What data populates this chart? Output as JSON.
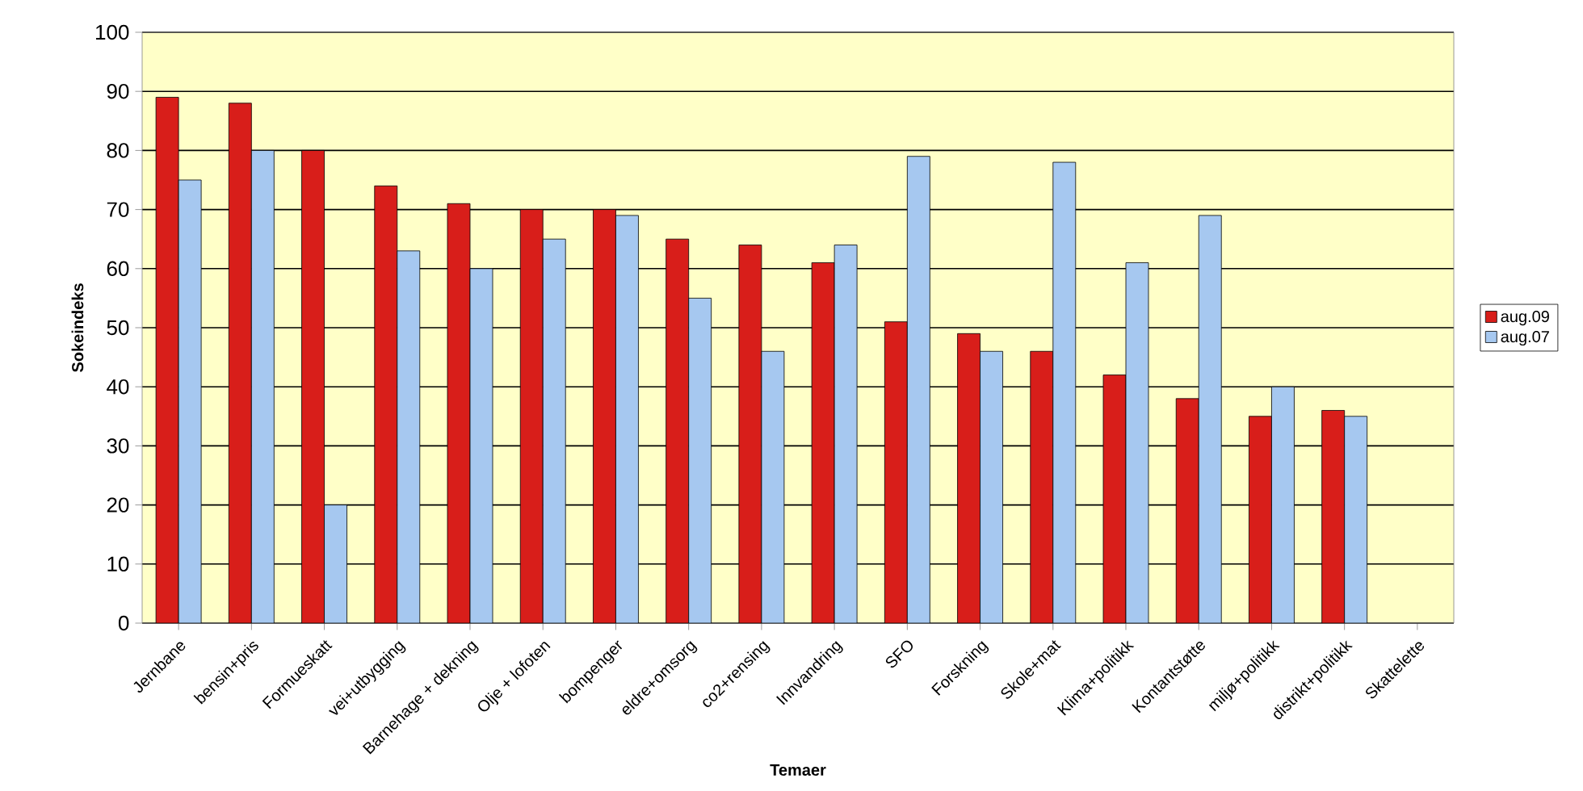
{
  "chart_data": {
    "type": "bar",
    "xlabel": "Temaer",
    "ylabel": "Sokeindeks",
    "categories": [
      "Jernbane",
      "bensin+pris",
      "Formueskatt",
      "vei+utbygging",
      "Barnehage + dekning",
      "Olje + lofoten",
      "bompenger",
      "eldre+omsorg",
      "co2+rensing",
      "Innvandring",
      "SFO",
      "Forskning",
      "Skole+mat",
      "Klima+politikk",
      "Kontantstøtte",
      "miljø+politikk",
      "distrikt+politikk",
      "Skattelette"
    ],
    "series": [
      {
        "name": "aug.09",
        "color": "#d81e1a",
        "values": [
          89,
          88,
          80,
          74,
          71,
          70,
          70,
          65,
          64,
          61,
          51,
          49,
          46,
          42,
          38,
          35,
          36,
          null
        ]
      },
      {
        "name": "aug.07",
        "color": "#a6c8f0",
        "values": [
          75,
          80,
          20,
          63,
          60,
          65,
          69,
          55,
          46,
          64,
          79,
          46,
          78,
          61,
          69,
          40,
          35,
          null
        ]
      }
    ],
    "ylim": [
      0,
      100
    ],
    "yticks": [
      0,
      10,
      20,
      30,
      40,
      50,
      60,
      70,
      80,
      90,
      100
    ],
    "grid": "y",
    "legend": "right"
  }
}
